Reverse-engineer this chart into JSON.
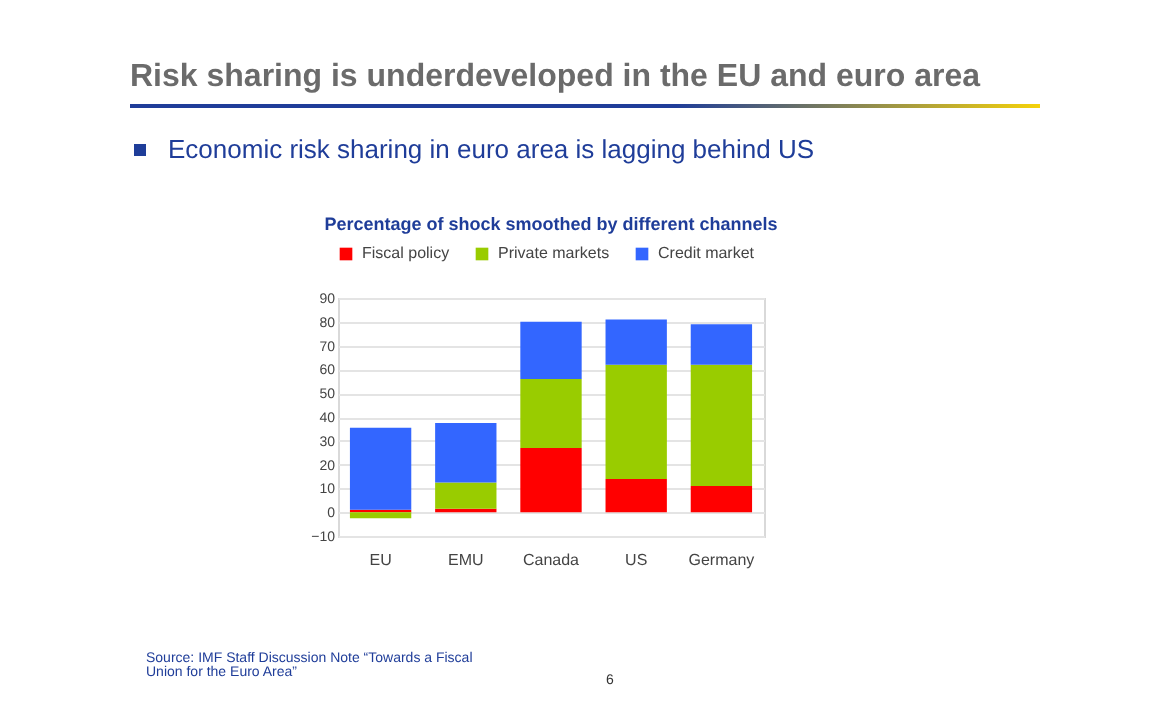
{
  "chart_data": {
    "type": "bar",
    "title": "Percentage of shock smoothed by different channels",
    "annotations": [
      "Risk sharing is underdeveloped in the EU and euro area",
      "Economic risk sharing in euro area is lagging behind US",
      "Source: IMF Staff Discussion Note “Towards  a Fiscal Union for the Euro Area”",
      "6"
    ],
    "categories": [
      "EU",
      "EMU",
      "Canada",
      "US",
      "Germany"
    ],
    "series": [
      {
        "name": "Fiscal policy",
        "color": "#ff0000",
        "values": [
          1,
          1.5,
          27,
          14,
          11
        ]
      },
      {
        "name": "Private markets",
        "color": "#99cc00",
        "values": [
          -2.5,
          11,
          29,
          48,
          51
        ]
      },
      {
        "name": "Credit market",
        "color": "#3366ff",
        "values": [
          34.5,
          25,
          24,
          19,
          17
        ]
      }
    ],
    "stacked": true,
    "ylim": [
      -10,
      90
    ],
    "yticks": [
      -10,
      0,
      10,
      20,
      30,
      40,
      50,
      60,
      70,
      80,
      90
    ],
    "grid": "y",
    "legend": "top"
  }
}
